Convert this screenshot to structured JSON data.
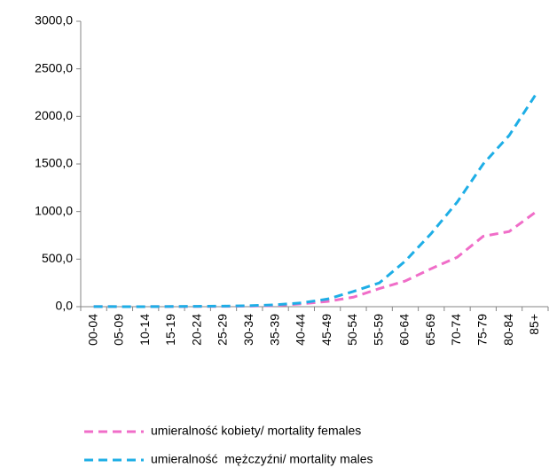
{
  "chart_data": {
    "type": "line",
    "categories": [
      "00-04",
      "05-09",
      "10-14",
      "15-19",
      "20-24",
      "25-29",
      "30-34",
      "35-39",
      "40-44",
      "45-49",
      "50-54",
      "55-59",
      "60-64",
      "65-69",
      "70-74",
      "75-79",
      "80-84",
      "85+"
    ],
    "series": [
      {
        "name": "umieralność kobiety/ mortality females",
        "color": "#f06dc8",
        "values": [
          1,
          0.5,
          0.5,
          1,
          2,
          3,
          6,
          12,
          30,
          55,
          100,
          190,
          270,
          400,
          520,
          740,
          790,
          990
        ]
      },
      {
        "name": "umieralność  mężczyźni/ mortality males",
        "color": "#1eaee6",
        "values": [
          1.5,
          0.5,
          0.5,
          2,
          4,
          6,
          10,
          20,
          40,
          80,
          160,
          250,
          480,
          770,
          1100,
          1500,
          1800,
          2220
        ]
      }
    ],
    "ylim": [
      0,
      3000
    ],
    "yticks": [
      {
        "value": 0,
        "label": "0,0"
      },
      {
        "value": 500,
        "label": "500,0"
      },
      {
        "value": 1000,
        "label": "1000,0"
      },
      {
        "value": 1500,
        "label": "1500,0"
      },
      {
        "value": 2000,
        "label": "2000,0"
      },
      {
        "value": 2500,
        "label": "2500,0"
      },
      {
        "value": 3000,
        "label": "3000,0"
      }
    ],
    "legend": "bottom"
  }
}
